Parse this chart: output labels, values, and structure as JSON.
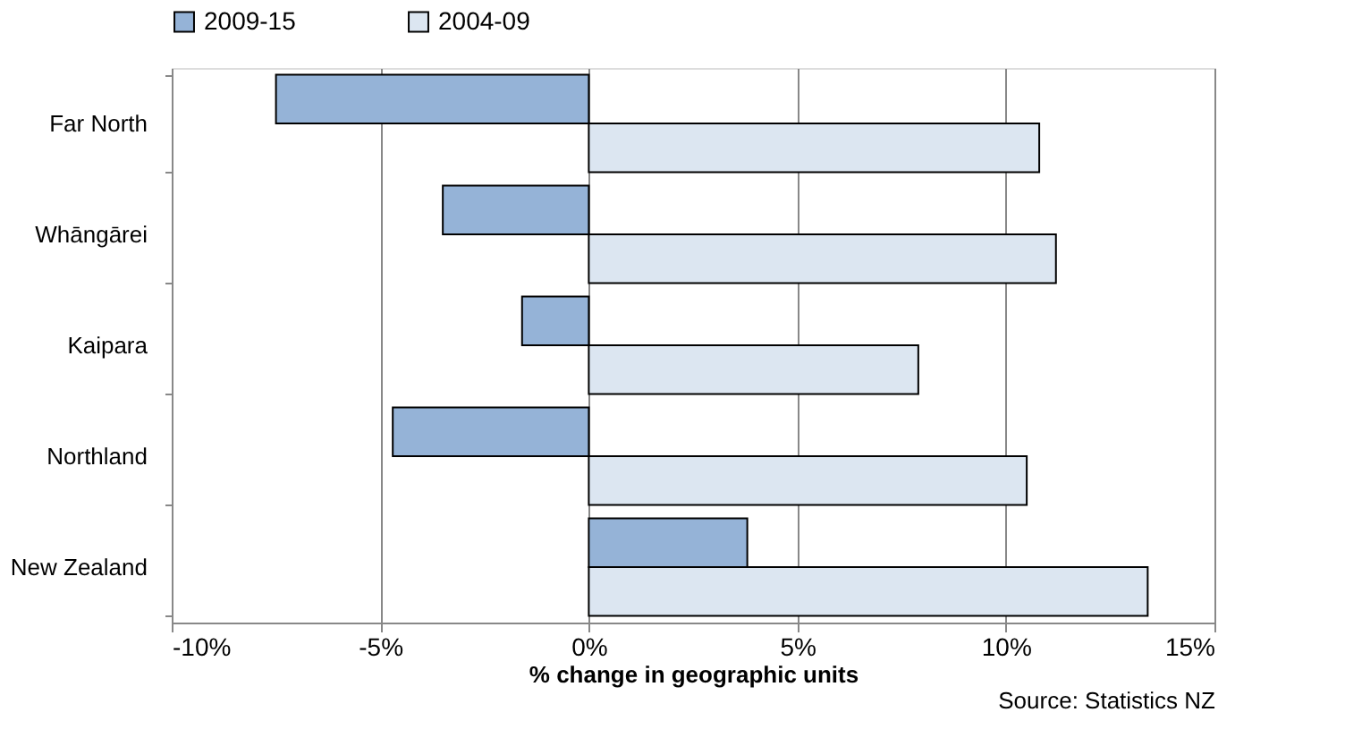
{
  "chart_data": {
    "type": "bar",
    "orientation": "horizontal",
    "categories": [
      "Far North",
      "Whāngārei",
      "Kaipara",
      "Northland",
      "New Zealand"
    ],
    "series": [
      {
        "name": "2009-15",
        "color": "#95b3d7",
        "values": [
          -7.5,
          -3.5,
          -1.6,
          -4.7,
          3.8
        ]
      },
      {
        "name": "2004-09",
        "color": "#dce6f1",
        "values": [
          10.8,
          11.2,
          7.9,
          10.5,
          13.4
        ]
      }
    ],
    "xlabel": "% change in geographic units",
    "xlim": [
      -10,
      15
    ],
    "xticks": [
      {
        "value": -10,
        "label": "-10%"
      },
      {
        "value": -5,
        "label": "-5%"
      },
      {
        "value": 0,
        "label": "0%"
      },
      {
        "value": 5,
        "label": "5%"
      },
      {
        "value": 10,
        "label": "10%"
      },
      {
        "value": 15,
        "label": "15%"
      }
    ],
    "grid": "x",
    "legend": "top",
    "annotations": [
      "Source: Statistics NZ"
    ]
  }
}
